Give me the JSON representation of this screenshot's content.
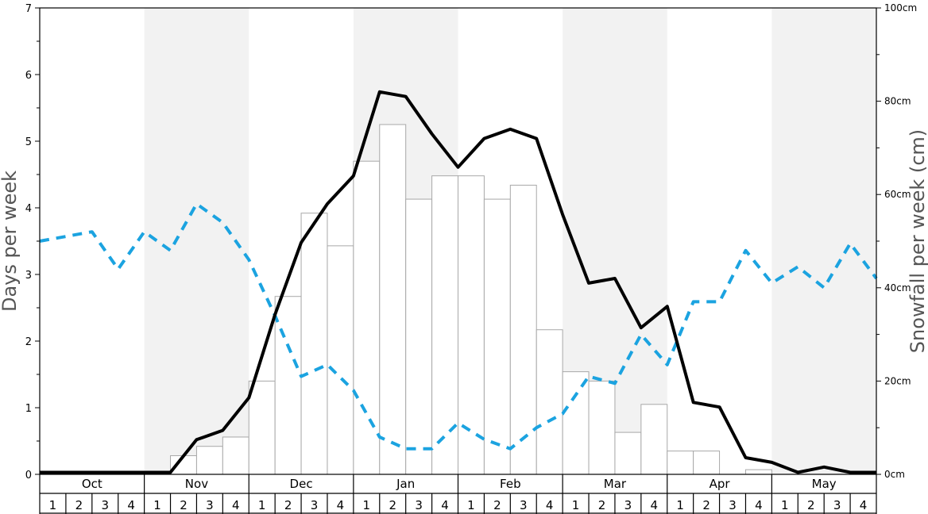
{
  "chart_data": {
    "type": "bar",
    "y_left": {
      "label": "Days per week",
      "range": [
        0,
        7
      ],
      "ticks": [
        0,
        1,
        2,
        3,
        4,
        5,
        6,
        7
      ]
    },
    "y_right": {
      "label": "Snowfall per week (cm)",
      "range": [
        0,
        100
      ],
      "ticks": [
        "0cm",
        "20cm",
        "40cm",
        "60cm",
        "80cm",
        "100cm"
      ]
    },
    "months": [
      "Oct",
      "Nov",
      "Dec",
      "Jan",
      "Feb",
      "Mar",
      "Apr",
      "May"
    ],
    "weeks": [
      "1",
      "2",
      "3",
      "4"
    ],
    "shaded_months": [
      "Nov",
      "Jan",
      "Mar",
      "May"
    ],
    "series": [
      {
        "kind": "bars",
        "axis": "left",
        "values": [
          0,
          0,
          0,
          0,
          0,
          0.28,
          0.42,
          0.56,
          1.4,
          2.67,
          3.92,
          3.43,
          4.7,
          5.25,
          4.13,
          4.48,
          4.48,
          4.13,
          4.34,
          2.17,
          1.54,
          1.4,
          0.63,
          1.05,
          0.35,
          0.35,
          0,
          0.07,
          0,
          0,
          0,
          0
        ]
      },
      {
        "kind": "line-solid",
        "axis": "left",
        "color": "#000000",
        "values": [
          0.03,
          0.03,
          0.03,
          0.03,
          0.03,
          0.03,
          0.52,
          0.66,
          1.15,
          2.4,
          3.48,
          4.06,
          4.48,
          5.74,
          5.67,
          5.11,
          4.61,
          5.04,
          5.18,
          5.04,
          3.9,
          2.87,
          2.94,
          2.2,
          2.52,
          1.08,
          1.01,
          0.25,
          0.18,
          0.03,
          0.11,
          0.03,
          0.03
        ]
      },
      {
        "kind": "line-dashed",
        "axis": "right",
        "color": "#1ba3e0",
        "values": [
          50,
          51,
          52,
          44,
          52,
          48,
          58,
          54,
          46,
          34,
          21,
          23.5,
          18,
          8,
          5.5,
          5.5,
          11,
          7.5,
          5.5,
          10,
          13,
          21,
          19.5,
          30,
          23.5,
          37,
          37,
          48,
          41,
          44.5,
          40,
          49.5,
          42
        ]
      }
    ]
  }
}
